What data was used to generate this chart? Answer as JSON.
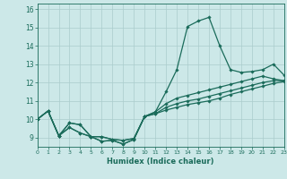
{
  "xlabel": "Humidex (Indice chaleur)",
  "bg_color": "#cce8e8",
  "line_color": "#1a6b5a",
  "grid_color": "#aacccc",
  "hours": [
    0,
    1,
    2,
    3,
    4,
    5,
    6,
    7,
    8,
    9,
    10,
    11,
    12,
    13,
    14,
    15,
    16,
    17,
    18,
    19,
    20,
    21,
    22,
    23
  ],
  "line1": [
    10.0,
    10.45,
    9.1,
    9.8,
    9.7,
    9.05,
    8.8,
    8.85,
    8.65,
    8.9,
    10.15,
    10.4,
    11.5,
    12.7,
    15.05,
    15.35,
    15.55,
    14.0,
    12.7,
    12.55,
    12.6,
    12.7,
    13.0,
    12.4
  ],
  "line2": [
    10.0,
    10.45,
    9.1,
    9.8,
    9.7,
    9.05,
    8.8,
    8.85,
    8.65,
    8.9,
    10.15,
    10.4,
    10.85,
    11.15,
    11.3,
    11.45,
    11.6,
    11.75,
    11.9,
    12.05,
    12.2,
    12.35,
    12.2,
    12.1
  ],
  "line3": [
    10.0,
    10.45,
    9.1,
    9.55,
    9.25,
    9.05,
    9.05,
    8.9,
    8.85,
    8.95,
    10.15,
    10.3,
    10.65,
    10.85,
    11.0,
    11.1,
    11.25,
    11.4,
    11.55,
    11.7,
    11.85,
    12.0,
    12.1,
    12.1
  ],
  "line4": [
    10.0,
    10.45,
    9.1,
    9.55,
    9.25,
    9.05,
    9.05,
    8.9,
    8.85,
    8.95,
    10.15,
    10.3,
    10.5,
    10.65,
    10.8,
    10.9,
    11.0,
    11.15,
    11.35,
    11.5,
    11.65,
    11.8,
    11.95,
    12.05
  ],
  "xlim": [
    0,
    23
  ],
  "ylim": [
    8.5,
    16.3
  ],
  "yticks": [
    9,
    10,
    11,
    12,
    13,
    14,
    15,
    16
  ],
  "xticks": [
    0,
    1,
    2,
    3,
    4,
    5,
    6,
    7,
    8,
    9,
    10,
    11,
    12,
    13,
    14,
    15,
    16,
    17,
    18,
    19,
    20,
    21,
    22,
    23
  ]
}
